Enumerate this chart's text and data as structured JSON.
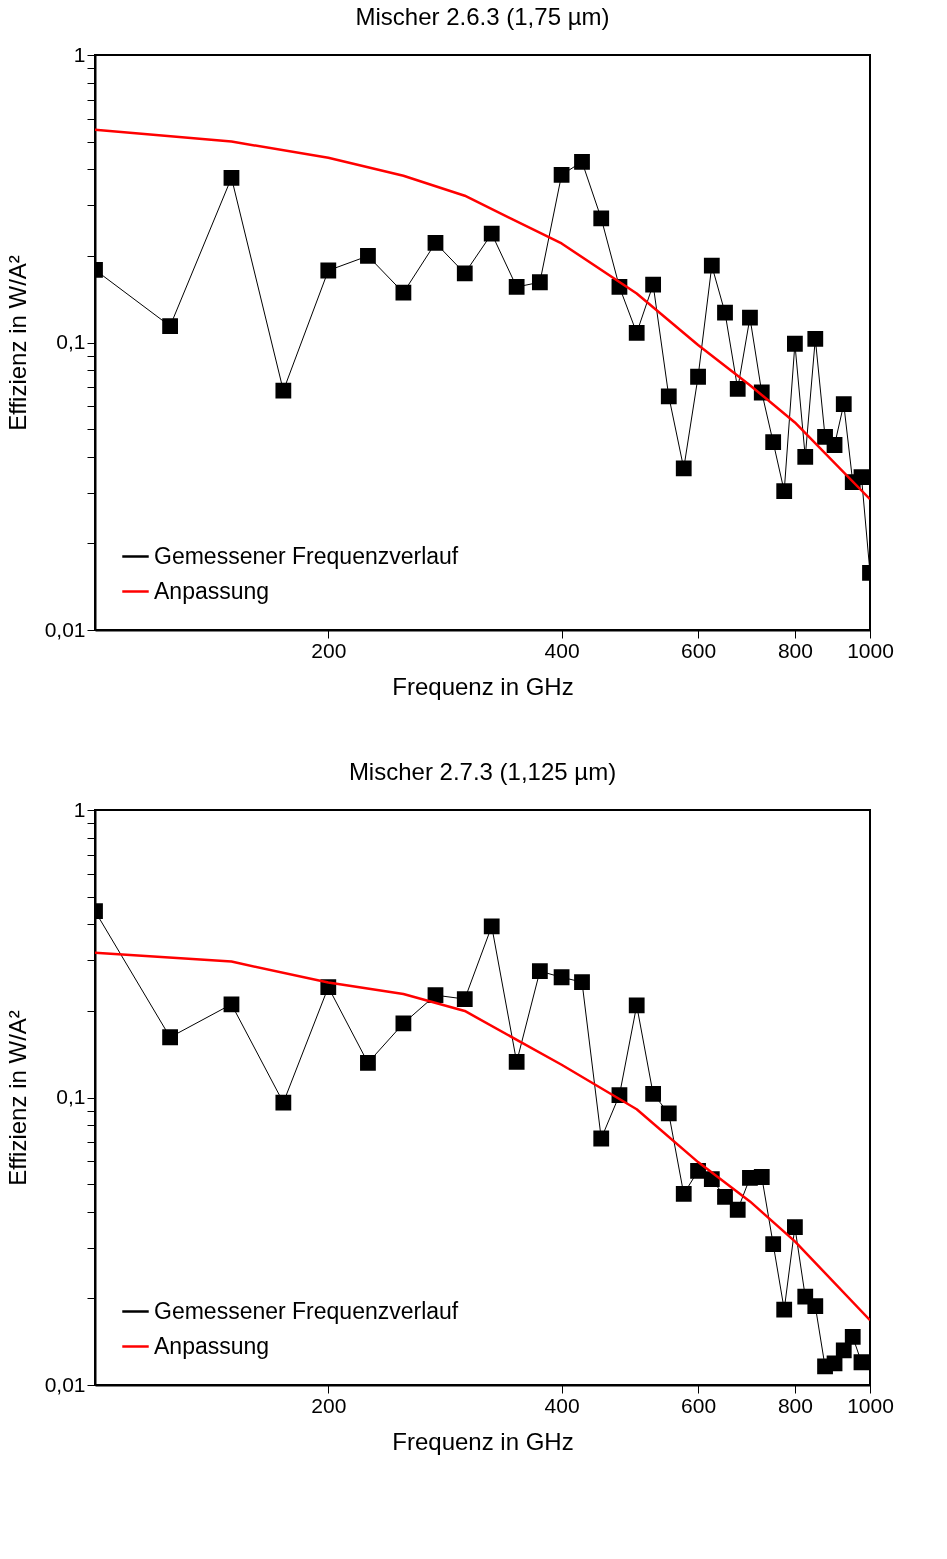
{
  "chart_data": [
    {
      "type": "line",
      "title": "Mischer 2.6.3 (1,75 µm)",
      "xlabel": "Frequenz in GHz",
      "ylabel": "Effizienz in W/A²",
      "log": "xy",
      "grid": false,
      "legend": "bottom left",
      "line_style": "solid",
      "xlim": [
        100,
        1000
      ],
      "xticks": [
        200,
        400,
        600,
        800,
        1000
      ],
      "ylim": [
        0.01,
        1
      ],
      "yticks": [
        1,
        {
          "value": 0.1,
          "label": "0,1"
        },
        {
          "value": 0.01,
          "label": "0,01"
        },
        {
          "value": 0.02,
          "label": null
        },
        {
          "value": 0.03,
          "label": null
        },
        {
          "value": 0.04,
          "label": null
        },
        {
          "value": 0.05,
          "label": null
        },
        {
          "value": 0.06,
          "label": null
        },
        {
          "value": 0.07,
          "label": null
        },
        {
          "value": 0.08,
          "label": null
        },
        {
          "value": 0.09,
          "label": null
        },
        {
          "value": 0.2,
          "label": null
        },
        {
          "value": 0.3,
          "label": null
        },
        {
          "value": 0.4,
          "label": null
        },
        {
          "value": 0.5,
          "label": null
        },
        {
          "value": 0.6,
          "label": null
        },
        {
          "value": 0.7,
          "label": null
        },
        {
          "value": 0.8,
          "label": null
        },
        {
          "value": 0.9,
          "label": null
        }
      ],
      "x": [
        100,
        125,
        150,
        175,
        200,
        225,
        250,
        275,
        300,
        325,
        350,
        375,
        400,
        425,
        450,
        475,
        500,
        525,
        550,
        575,
        600,
        625,
        650,
        675,
        700,
        725,
        750,
        775,
        800,
        825,
        850,
        875,
        900,
        925,
        950,
        975,
        1000
      ],
      "series": [
        {
          "name": "Gemessener Frequenzverlauf",
          "color": "#000000",
          "marker": "square",
          "values": [
            0.179,
            0.114,
            0.374,
            0.068,
            0.178,
            0.2,
            0.149,
            0.222,
            0.174,
            0.239,
            0.156,
            0.162,
            0.383,
            0.425,
            0.27,
            0.156,
            0.108,
            0.159,
            0.065,
            0.0365,
            0.076,
            0.185,
            0.127,
            0.069,
            0.122,
            0.067,
            0.045,
            0.0304,
            0.099,
            0.04,
            0.103,
            0.047,
            0.044,
            0.061,
            0.0327,
            0.034,
            0.0158
          ]
        },
        {
          "name": "Anpassung",
          "color": "#ff0000",
          "marker": "none",
          "x": [
            100,
            150,
            200,
            250,
            300,
            400,
            500,
            600,
            700,
            800,
            1000
          ],
          "values": [
            0.55,
            0.5,
            0.439,
            0.38,
            0.324,
            0.221,
            0.148,
            0.098,
            0.071,
            0.0527,
            0.0285
          ]
        }
      ]
    },
    {
      "type": "line",
      "title": "Mischer 2.7.3 (1,125 µm)",
      "xlabel": "Frequenz in GHz",
      "ylabel": "Effizienz in W/A²",
      "log": "xy",
      "grid": false,
      "legend": "bottom left",
      "line_style": "solid",
      "xlim": [
        100,
        1000
      ],
      "xticks": [
        200,
        400,
        600,
        800,
        1000
      ],
      "ylim": [
        0.01,
        1
      ],
      "yticks": [
        1,
        {
          "value": 0.1,
          "label": "0,1"
        },
        {
          "value": 0.01,
          "label": "0,01"
        },
        {
          "value": 0.02,
          "label": null
        },
        {
          "value": 0.03,
          "label": null
        },
        {
          "value": 0.04,
          "label": null
        },
        {
          "value": 0.05,
          "label": null
        },
        {
          "value": 0.06,
          "label": null
        },
        {
          "value": 0.07,
          "label": null
        },
        {
          "value": 0.08,
          "label": null
        },
        {
          "value": 0.09,
          "label": null
        },
        {
          "value": 0.2,
          "label": null
        },
        {
          "value": 0.3,
          "label": null
        },
        {
          "value": 0.4,
          "label": null
        },
        {
          "value": 0.5,
          "label": null
        },
        {
          "value": 0.6,
          "label": null
        },
        {
          "value": 0.7,
          "label": null
        },
        {
          "value": 0.8,
          "label": null
        },
        {
          "value": 0.9,
          "label": null
        }
      ],
      "x": [
        100,
        125,
        150,
        175,
        200,
        225,
        250,
        275,
        300,
        325,
        350,
        375,
        400,
        425,
        450,
        475,
        500,
        525,
        550,
        575,
        600,
        625,
        650,
        675,
        700,
        725,
        750,
        775,
        800,
        825,
        850,
        875,
        900,
        925,
        950,
        975
      ],
      "series": [
        {
          "name": "Gemessener Frequenzverlauf",
          "color": "#000000",
          "marker": "square",
          "values": [
            0.445,
            0.162,
            0.211,
            0.096,
            0.242,
            0.132,
            0.181,
            0.227,
            0.22,
            0.394,
            0.133,
            0.275,
            0.262,
            0.252,
            0.072,
            0.102,
            0.209,
            0.103,
            0.088,
            0.0462,
            0.0556,
            0.052,
            0.0451,
            0.0407,
            0.0525,
            0.0529,
            0.0309,
            0.0183,
            0.0354,
            0.0203,
            0.0188,
            0.0116,
            0.0119,
            0.0132,
            0.0147,
            0.012
          ]
        },
        {
          "name": "Anpassung",
          "color": "#ff0000",
          "marker": "none",
          "x": [
            100,
            150,
            200,
            250,
            300,
            400,
            500,
            600,
            700,
            800,
            1000
          ],
          "values": [
            0.319,
            0.297,
            0.251,
            0.229,
            0.2,
            0.13,
            0.091,
            0.0596,
            0.0435,
            0.0316,
            0.0168
          ]
        }
      ]
    }
  ]
}
